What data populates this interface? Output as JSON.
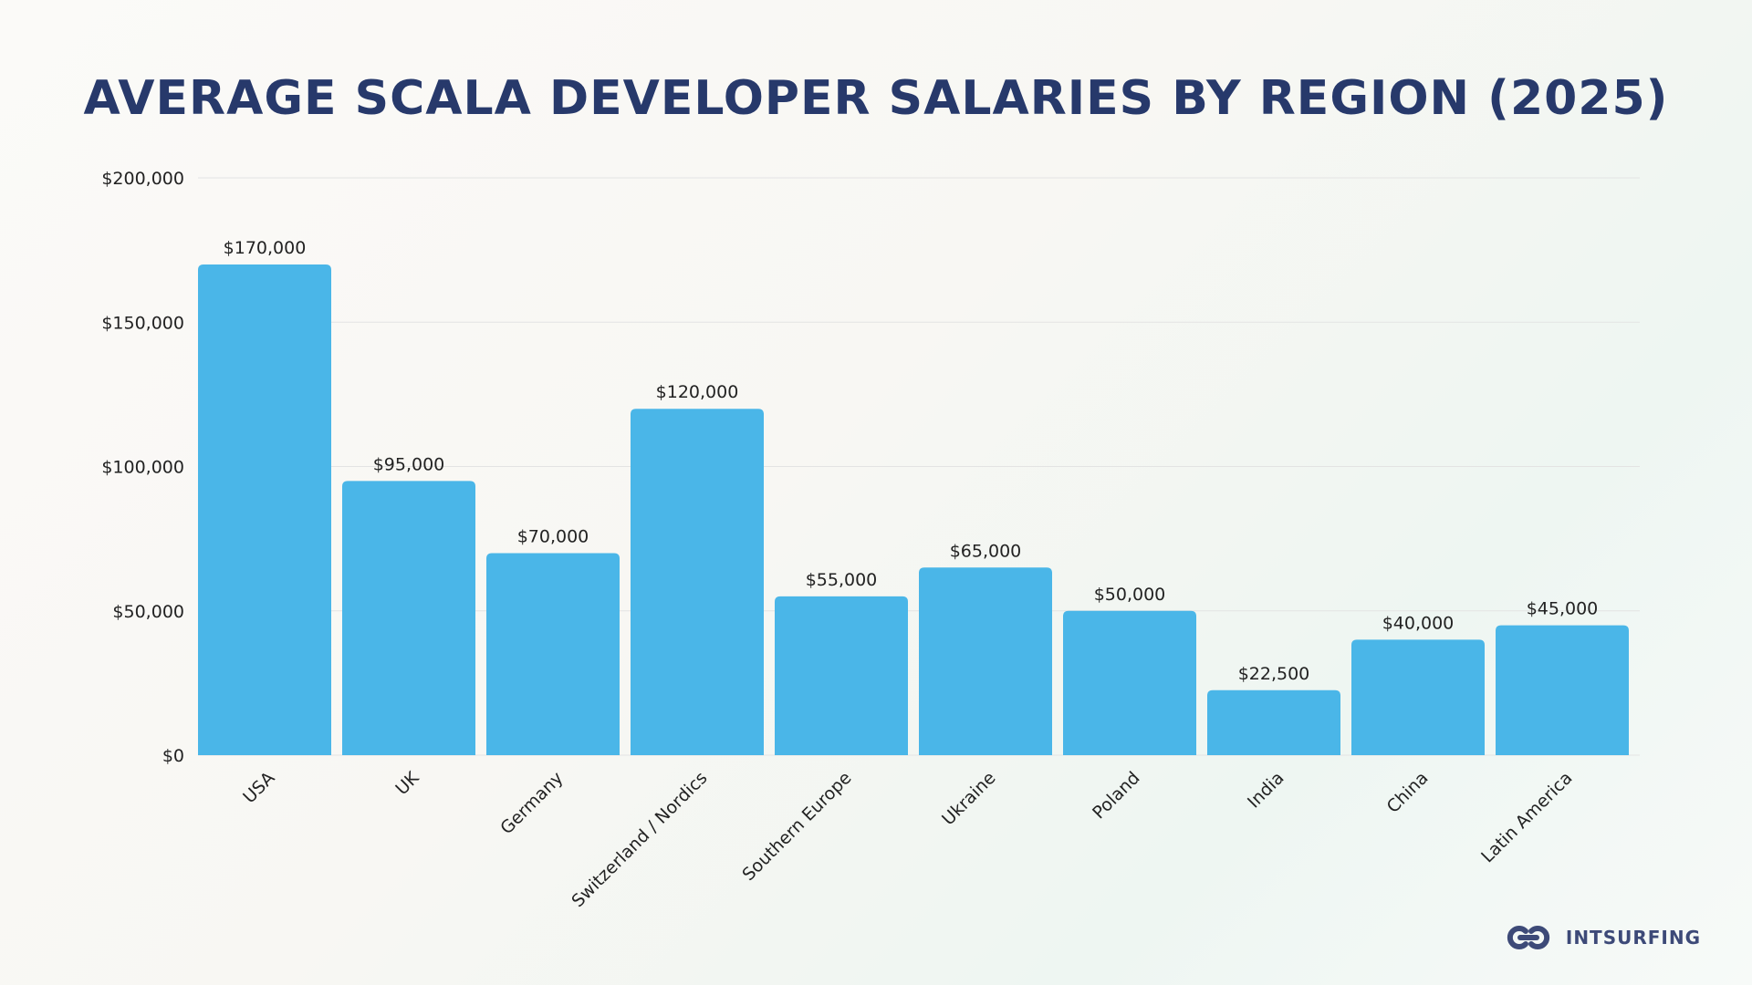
{
  "chart_data": {
    "type": "bar",
    "title": "AVERAGE SCALA DEVELOPER SALARIES BY REGION (2025)",
    "categories": [
      "USA",
      "UK",
      "Germany",
      "Switzerland / Nordics",
      "Southern Europe",
      "Ukraine",
      "Poland",
      "India",
      "China",
      "Latin America"
    ],
    "values": [
      170000,
      95000,
      70000,
      120000,
      55000,
      65000,
      50000,
      22500,
      40000,
      45000
    ],
    "value_labels": [
      "$170,000",
      "$95,000",
      "$70,000",
      "$120,000",
      "$55,000",
      "$65,000",
      "$50,000",
      "$22,500",
      "$40,000",
      "$45,000"
    ],
    "yticks": [
      0,
      50000,
      100000,
      150000,
      200000
    ],
    "ytick_labels": [
      "$0",
      "$50,000",
      "$100,000",
      "$150,000",
      "$200,000"
    ],
    "ylim": [
      0,
      200000
    ],
    "xlabel": "",
    "ylabel": "",
    "grid": true,
    "bar_color": "#4ab6e8"
  },
  "brand": {
    "name": "INTSURFING"
  },
  "colors": {
    "title": "#27396b",
    "logo": "#3d4a78",
    "grid": "#e3e3e3"
  }
}
